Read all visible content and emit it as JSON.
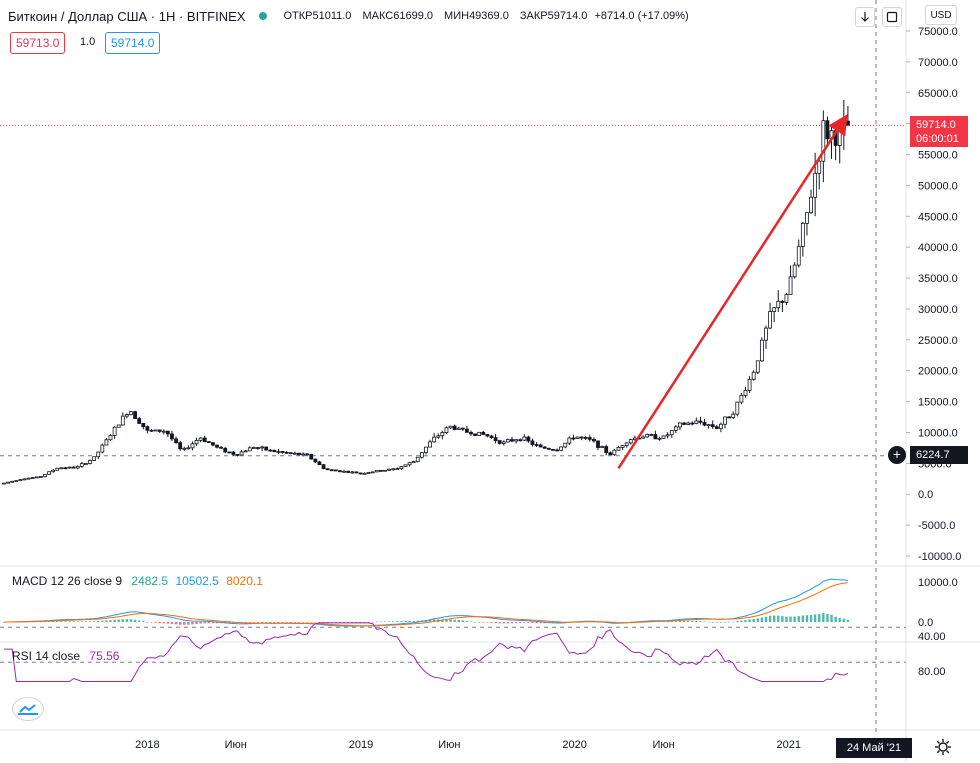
{
  "header": {
    "title": "Биткоин / Доллар США · 1Н · BITFINEX",
    "open_label": "ОТКР",
    "open": "51011.0",
    "high_label": "МАКС",
    "high": "61699.0",
    "low_label": "МИН",
    "low": "49369.0",
    "close_label": "ЗАКР",
    "close": "59714.0",
    "change": "+8714.0 (+17.09%)"
  },
  "bid_box": "59713.0",
  "spread": "1.0",
  "ask_box": "59714.0",
  "currency": "USD",
  "last_price": "59714.0",
  "countdown": "06:00:01",
  "crosshair_price": "6224.7",
  "crosshair_date": "24 Май '21",
  "macd": {
    "label": "MACD 12 26 close 9",
    "hist": "2482.5",
    "macd": "10502.5",
    "signal": "8020.1"
  },
  "rsi": {
    "label": "RSI 14 close",
    "value": "75.56"
  },
  "colors": {
    "up": "#131722",
    "down": "#131722",
    "arrow": "#e8262a",
    "macd_line": "#2196f3",
    "signal_line": "#ff6d00",
    "rsi_line": "#9c27b0",
    "rsi_band": "#f3e5f5",
    "price_tag": "#f23645"
  },
  "icons": {
    "down_arrow": "arrow-down-icon",
    "fullscreen": "fullscreen-icon",
    "settings": "gear-icon",
    "logo": "tv-cloud-icon"
  },
  "chart_data": [
    {
      "type": "candlestick",
      "title": "Биткоин / Доллар США · 1Н · BITFINEX",
      "ylim": [
        -10000,
        77000
      ],
      "y_ticks": [
        75000,
        70000,
        65000,
        60000,
        55000,
        50000,
        45000,
        40000,
        35000,
        30000,
        25000,
        20000,
        15000,
        10000,
        5000,
        0,
        -5000,
        -10000
      ],
      "x_ticks": [
        "2018",
        "Июн",
        "2019",
        "Июн",
        "2020",
        "Июн",
        "2021"
      ],
      "x_tick_dates": [
        "2018-01-01",
        "2018-06-01",
        "2019-01-01",
        "2019-06-01",
        "2020-01-01",
        "2020-06-01",
        "2021-01-01"
      ],
      "series_close": [
        [
          "2017-05-01",
          1800
        ],
        [
          "2017-06-01",
          2500
        ],
        [
          "2017-07-01",
          2800
        ],
        [
          "2017-08-01",
          4300
        ],
        [
          "2017-09-01",
          4300
        ],
        [
          "2017-10-01",
          5800
        ],
        [
          "2017-11-01",
          9900
        ],
        [
          "2017-12-01",
          13800
        ],
        [
          "2018-01-01",
          10200
        ],
        [
          "2018-02-01",
          10300
        ],
        [
          "2018-03-01",
          6900
        ],
        [
          "2018-04-01",
          9200
        ],
        [
          "2018-05-01",
          7500
        ],
        [
          "2018-06-01",
          6400
        ],
        [
          "2018-07-01",
          7700
        ],
        [
          "2018-08-01",
          7000
        ],
        [
          "2018-09-01",
          6600
        ],
        [
          "2018-10-01",
          6300
        ],
        [
          "2018-11-01",
          4000
        ],
        [
          "2018-12-01",
          3700
        ],
        [
          "2019-01-01",
          3400
        ],
        [
          "2019-02-01",
          3800
        ],
        [
          "2019-03-01",
          4100
        ],
        [
          "2019-04-01",
          5300
        ],
        [
          "2019-05-01",
          8600
        ],
        [
          "2019-06-01",
          11000
        ],
        [
          "2019-07-01",
          10100
        ],
        [
          "2019-08-01",
          9600
        ],
        [
          "2019-09-01",
          8300
        ],
        [
          "2019-10-01",
          9200
        ],
        [
          "2019-11-01",
          7600
        ],
        [
          "2019-12-01",
          7200
        ],
        [
          "2020-01-01",
          9400
        ],
        [
          "2020-02-01",
          8600
        ],
        [
          "2020-03-01",
          6400
        ],
        [
          "2020-04-01",
          8800
        ],
        [
          "2020-05-01",
          9500
        ],
        [
          "2020-06-01",
          9200
        ],
        [
          "2020-07-01",
          11300
        ],
        [
          "2020-08-01",
          11700
        ],
        [
          "2020-09-01",
          10800
        ],
        [
          "2020-10-01",
          13800
        ],
        [
          "2020-11-01",
          19700
        ],
        [
          "2020-12-01",
          29000
        ],
        [
          "2021-01-01",
          33100
        ],
        [
          "2021-02-01",
          45200
        ],
        [
          "2021-03-01",
          58800
        ],
        [
          "2021-04-01",
          57700
        ],
        [
          "2021-04-12",
          59714
        ]
      ],
      "annotations": [
        {
          "type": "arrow",
          "from": [
            "2020-03-16",
            4200
          ],
          "to": [
            "2021-04-12",
            61500
          ]
        }
      ],
      "horizontal_lines": [
        59714,
        6224.7
      ]
    },
    {
      "type": "line",
      "title": "MACD 12 26 close 9",
      "ylim": [
        -1500,
        12000
      ],
      "y_ticks": [
        10000,
        0
      ]
    },
    {
      "type": "line",
      "title": "RSI 14 close",
      "ylim": [
        20,
        100
      ],
      "y_ticks": [
        80,
        40
      ],
      "band": [
        30,
        70
      ]
    }
  ]
}
